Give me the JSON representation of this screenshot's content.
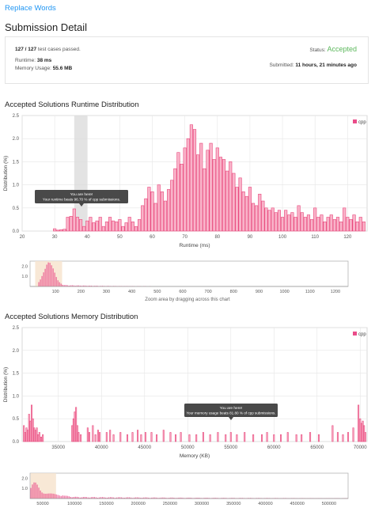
{
  "header": {
    "problem_link": "Replace Words",
    "title": "Submission Detail"
  },
  "summary": {
    "cases_passed": "127 / 127",
    "cases_suffix": "test cases passed.",
    "runtime_label": "Runtime:",
    "runtime_value": "38 ms",
    "memory_label": "Memory Usage:",
    "memory_value": "55.6 MB",
    "status_label": "Status:",
    "status_value": "Accepted",
    "submitted_label": "Submitted:",
    "submitted_value": "11 hours, 21 minutes ago"
  },
  "runtime_section": {
    "title": "Accepted Solutions Runtime Distribution",
    "tooltip_line1": "You are here!",
    "tooltip_line2": "Your runtime beats 96.70 % of cpp submissions.",
    "zoom_hint": "Zoom area by dragging across this chart"
  },
  "memory_section": {
    "title": "Accepted Solutions Memory Distribution",
    "tooltip_line1": "You are here!",
    "tooltip_line2": "Your memory usage beats 81.80 % of cpp submissions."
  },
  "colors": {
    "bar_fill": "#f9b3c9",
    "bar_stroke": "#e8457a",
    "accent": "#ea4c89",
    "status": "#5cb85c",
    "link": "#2196f3"
  },
  "chart_data": [
    {
      "type": "bar",
      "name": "runtime-distribution",
      "xlabel": "Runtime (ms)",
      "ylabel": "Distribution (%)",
      "xlim": [
        20,
        126
      ],
      "ylim": [
        0,
        2.5
      ],
      "xticks": [
        20,
        30,
        40,
        50,
        60,
        70,
        80,
        90,
        100,
        110,
        120
      ],
      "yticks": [
        0,
        0.5,
        1.0,
        1.5,
        2.0,
        2.5
      ],
      "ytick_labels": [
        "0.0",
        "0.5",
        "1.0",
        "1.5",
        "2.0",
        "2.5"
      ],
      "legend": "cpp",
      "highlight_range": [
        36,
        40
      ],
      "x": [
        30,
        31,
        32,
        33,
        34,
        35,
        36,
        37,
        38,
        39,
        40,
        41,
        42,
        43,
        44,
        45,
        46,
        47,
        48,
        49,
        50,
        51,
        52,
        53,
        54,
        55,
        56,
        57,
        58,
        59,
        60,
        61,
        62,
        63,
        64,
        65,
        66,
        67,
        68,
        69,
        70,
        71,
        72,
        73,
        74,
        75,
        76,
        77,
        78,
        79,
        80,
        81,
        82,
        83,
        84,
        85,
        86,
        87,
        88,
        89,
        90,
        91,
        92,
        93,
        94,
        95,
        96,
        97,
        98,
        99,
        100,
        101,
        102,
        103,
        104,
        105,
        106,
        107,
        108,
        109,
        110,
        111,
        112,
        113,
        114,
        115,
        116,
        117,
        118,
        119,
        120,
        121,
        122,
        123,
        124,
        125
      ],
      "values": [
        0.05,
        0.02,
        0.03,
        0.04,
        0.3,
        0.32,
        0.48,
        0.3,
        0.25,
        0.1,
        0.22,
        0.3,
        0.18,
        0.22,
        0.3,
        0.1,
        0.2,
        0.3,
        0.22,
        0.2,
        0.25,
        0.1,
        0.18,
        0.3,
        0.2,
        0.1,
        0.25,
        0.55,
        0.7,
        0.95,
        0.85,
        0.6,
        1.0,
        0.85,
        0.65,
        0.9,
        1.1,
        1.35,
        1.7,
        1.45,
        1.8,
        2.0,
        2.3,
        2.2,
        1.65,
        1.9,
        1.35,
        1.75,
        1.9,
        1.55,
        1.8,
        1.6,
        1.55,
        1.3,
        1.5,
        1.25,
        0.95,
        1.15,
        0.85,
        0.75,
        0.95,
        0.6,
        0.55,
        0.8,
        0.65,
        0.5,
        0.45,
        0.5,
        0.4,
        0.45,
        0.3,
        0.45,
        0.35,
        0.4,
        0.3,
        0.55,
        0.4,
        0.3,
        0.35,
        0.25,
        0.5,
        0.3,
        0.35,
        0.2,
        0.3,
        0.35,
        0.25,
        0.3,
        0.2,
        0.5,
        0.3,
        0.25,
        0.35,
        0.2,
        0.3,
        0.2
      ]
    },
    {
      "type": "bar",
      "name": "runtime-navigator",
      "xlim": [
        0,
        1250
      ],
      "ylim": [
        0,
        2.5
      ],
      "xticks": [
        100,
        200,
        300,
        400,
        500,
        600,
        700,
        800,
        900,
        1000,
        1100,
        1200
      ],
      "yticks": [
        1.0,
        2.0
      ],
      "ytick_labels": [
        "1.0",
        "2.0"
      ],
      "selection": [
        20,
        126
      ]
    },
    {
      "type": "bar",
      "name": "memory-distribution",
      "xlabel": "Memory (KB)",
      "ylabel": "Distribution (%)",
      "xlim": [
        30800,
        70800
      ],
      "ylim": [
        0,
        2.5
      ],
      "xticks": [
        35000,
        40000,
        45000,
        50000,
        55000,
        60000,
        65000,
        70000
      ],
      "yticks": [
        0,
        0.5,
        1.0,
        1.5,
        2.0,
        2.5
      ],
      "ytick_labels": [
        "0.0",
        "0.5",
        "1.0",
        "1.5",
        "2.0",
        "2.5"
      ],
      "legend": "cpp",
      "x": [
        31000,
        31150,
        31300,
        31450,
        31600,
        31750,
        31900,
        32050,
        32200,
        32350,
        32500,
        32650,
        32800,
        33000,
        33200,
        36600,
        36750,
        36900,
        37050,
        37200,
        37350,
        37600,
        38400,
        38600,
        39000,
        39300,
        39600,
        39800,
        40600,
        41000,
        41400,
        42200,
        43000,
        43600,
        44200,
        44600,
        45100,
        45800,
        46400,
        47200,
        48000,
        48600,
        49200,
        50200,
        51000,
        51800,
        52600,
        53500,
        54400,
        55000,
        55700,
        56600,
        57600,
        58600,
        59200,
        60000,
        60800,
        61600,
        62600,
        63200,
        64200,
        65200,
        66800,
        67400,
        68000,
        68600,
        69200,
        69800,
        70000,
        70150,
        70300,
        70450,
        70600
      ],
      "values": [
        0.35,
        0.2,
        0.3,
        0.25,
        0.6,
        0.45,
        0.8,
        0.5,
        0.3,
        0.25,
        0.3,
        0.15,
        0.2,
        0.1,
        0.15,
        0.35,
        0.5,
        0.65,
        0.75,
        0.35,
        0.2,
        0.15,
        0.3,
        0.2,
        0.35,
        0.15,
        0.25,
        0.2,
        0.2,
        0.25,
        0.15,
        0.2,
        0.15,
        0.2,
        0.25,
        0.15,
        0.2,
        0.2,
        0.15,
        0.25,
        0.2,
        0.15,
        0.2,
        0.15,
        0.15,
        0.2,
        0.15,
        0.2,
        0.15,
        0.2,
        0.15,
        0.2,
        0.15,
        0.15,
        0.2,
        0.15,
        0.15,
        0.2,
        0.15,
        0.15,
        0.2,
        0.15,
        0.35,
        0.2,
        0.15,
        0.2,
        0.3,
        0.8,
        0.5,
        0.4,
        0.45,
        0.35,
        0.2
      ]
    },
    {
      "type": "bar",
      "name": "memory-navigator",
      "xlim": [
        30000,
        530000
      ],
      "ylim": [
        0,
        2.5
      ],
      "xticks": [
        50000,
        100000,
        150000,
        200000,
        250000,
        300000,
        350000,
        400000,
        450000,
        500000
      ],
      "yticks": [
        1.0,
        2.0
      ],
      "ytick_labels": [
        "1.0",
        "2.0"
      ],
      "selection": [
        30800,
        70800
      ]
    }
  ]
}
